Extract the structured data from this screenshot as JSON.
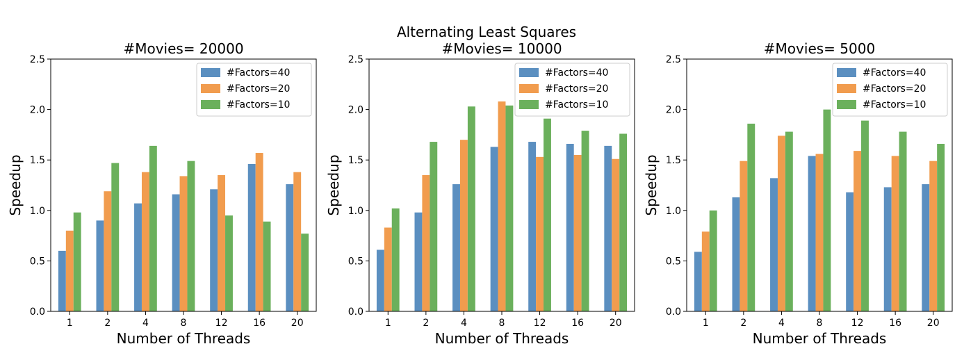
{
  "suptitle": "Alternating Least Squares",
  "colors": {
    "factors_40": "#5b8fc0",
    "factors_20": "#f19c4e",
    "factors_10": "#6bb05c"
  },
  "chart_data": [
    {
      "type": "bar",
      "title": "#Movies= 20000",
      "xlabel": "Number of Threads",
      "ylabel": "Speedup",
      "ylim": [
        0,
        2.5
      ],
      "yticks": [
        "0.0",
        "0.5",
        "1.0",
        "1.5",
        "2.0",
        "2.5"
      ],
      "categories": [
        "1",
        "2",
        "4",
        "8",
        "12",
        "16",
        "20"
      ],
      "legend_position": "top-right",
      "grid": false,
      "series": [
        {
          "name": "#Factors=40",
          "values": [
            0.6,
            0.9,
            1.07,
            1.16,
            1.21,
            1.46,
            1.26
          ]
        },
        {
          "name": "#Factors=20",
          "values": [
            0.8,
            1.19,
            1.38,
            1.34,
            1.35,
            1.57,
            1.38
          ]
        },
        {
          "name": "#Factors=10",
          "values": [
            0.98,
            1.47,
            1.64,
            1.49,
            0.95,
            0.89,
            0.77
          ]
        }
      ]
    },
    {
      "type": "bar",
      "title": "#Movies= 10000",
      "xlabel": "Number of Threads",
      "ylabel": "Speedup",
      "ylim": [
        0,
        2.5
      ],
      "yticks": [
        "0.0",
        "0.5",
        "1.0",
        "1.5",
        "2.0",
        "2.5"
      ],
      "categories": [
        "1",
        "2",
        "4",
        "8",
        "12",
        "16",
        "20"
      ],
      "legend_position": "top-right",
      "grid": false,
      "series": [
        {
          "name": "#Factors=40",
          "values": [
            0.61,
            0.98,
            1.26,
            1.63,
            1.68,
            1.66,
            1.64
          ]
        },
        {
          "name": "#Factors=20",
          "values": [
            0.83,
            1.35,
            1.7,
            2.08,
            1.53,
            1.55,
            1.51
          ]
        },
        {
          "name": "#Factors=10",
          "values": [
            1.02,
            1.68,
            2.03,
            2.04,
            1.91,
            1.79,
            1.76
          ]
        }
      ]
    },
    {
      "type": "bar",
      "title": "#Movies= 5000",
      "xlabel": "Number of Threads",
      "ylabel": "Speedup",
      "ylim": [
        0,
        2.5
      ],
      "yticks": [
        "0.0",
        "0.5",
        "1.0",
        "1.5",
        "2.0",
        "2.5"
      ],
      "categories": [
        "1",
        "2",
        "4",
        "8",
        "12",
        "16",
        "20"
      ],
      "legend_position": "top-right",
      "grid": false,
      "series": [
        {
          "name": "#Factors=40",
          "values": [
            0.59,
            1.13,
            1.32,
            1.54,
            1.18,
            1.23,
            1.26
          ]
        },
        {
          "name": "#Factors=20",
          "values": [
            0.79,
            1.49,
            1.74,
            1.56,
            1.59,
            1.54,
            1.49
          ]
        },
        {
          "name": "#Factors=10",
          "values": [
            1.0,
            1.86,
            1.78,
            2.0,
            1.89,
            1.78,
            1.66
          ]
        }
      ]
    }
  ]
}
